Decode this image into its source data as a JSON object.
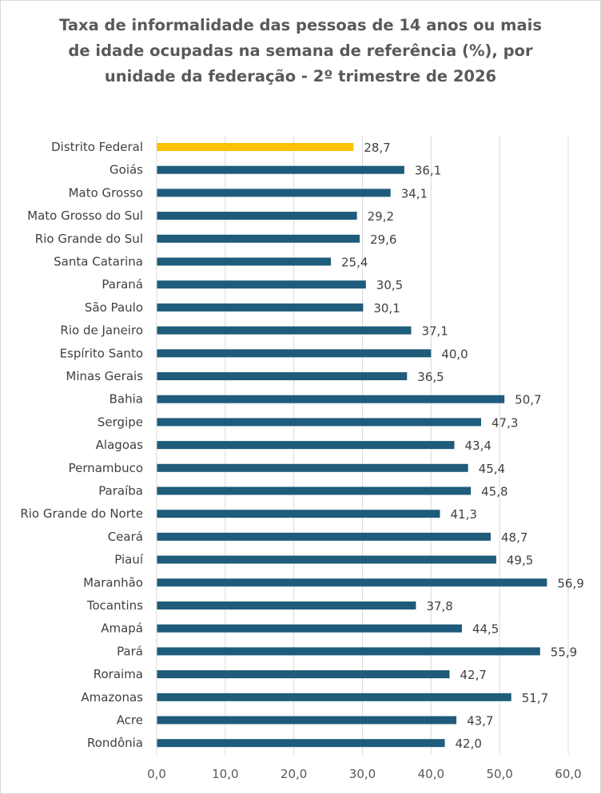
{
  "chart_data": {
    "type": "bar",
    "orientation": "horizontal",
    "title_lines": [
      "Taxa de informalidade das pessoas de 14 anos ou mais",
      "de idade ocupadas  na semana de referência (%), por",
      "unidade da federação - 2º trimestre de 2026"
    ],
    "categories": [
      "Distrito Federal",
      "Goiás",
      "Mato Grosso",
      "Mato Grosso do Sul",
      "Rio Grande do Sul",
      "Santa Catarina",
      "Paraná",
      "São Paulo",
      "Rio de Janeiro",
      "Espírito Santo",
      "Minas Gerais",
      "Bahia",
      "Sergipe",
      "Alagoas",
      "Pernambuco",
      "Paraíba",
      "Rio Grande do Norte",
      "Ceará",
      "Piauí",
      "Maranhão",
      "Tocantins",
      "Amapá",
      "Pará",
      "Roraima",
      "Amazonas",
      "Acre",
      "Rondônia"
    ],
    "values": [
      28.7,
      36.1,
      34.1,
      29.2,
      29.6,
      25.4,
      30.5,
      30.1,
      37.1,
      40.0,
      36.5,
      50.7,
      47.3,
      43.4,
      45.4,
      45.8,
      41.3,
      48.7,
      49.5,
      56.9,
      37.8,
      44.5,
      55.9,
      42.7,
      51.7,
      43.7,
      42.0
    ],
    "value_labels": [
      "28,7",
      "36,1",
      "34,1",
      "29,2",
      "29,6",
      "25,4",
      "30,5",
      "30,1",
      "37,1",
      "40,0",
      "36,5",
      "50,7",
      "47,3",
      "43,4",
      "45,4",
      "45,8",
      "41,3",
      "48,7",
      "49,5",
      "56,9",
      "37,8",
      "44,5",
      "55,9",
      "42,7",
      "51,7",
      "43,7",
      "42,0"
    ],
    "highlight_category": "Distrito Federal",
    "colors": {
      "default": "#1f5b7a",
      "highlight": "#ffc000",
      "grid": "#d9d9d9"
    },
    "xlim": [
      0,
      60
    ],
    "x_ticks": [
      0,
      10,
      20,
      30,
      40,
      50,
      60
    ],
    "x_tick_labels": [
      "0,0",
      "10,0",
      "20,0",
      "30,0",
      "40,0",
      "50,0",
      "60,0"
    ],
    "grid": true,
    "legend": "none"
  }
}
